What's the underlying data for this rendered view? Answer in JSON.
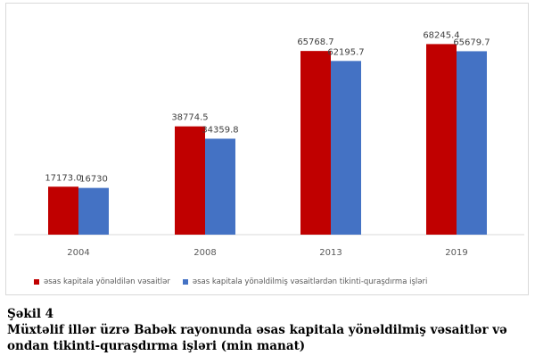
{
  "chart_data": {
    "type": "bar",
    "categories": [
      "2004",
      "2008",
      "2013",
      "2019"
    ],
    "series": [
      {
        "name": "əsas kapitala yönəldilən vəsaitlər",
        "values": [
          17173.0,
          38774.5,
          65768.7,
          68245.4
        ],
        "labels": [
          "17173.0",
          "38774.5",
          "65768.7",
          "68245.4"
        ],
        "color": "#c00000"
      },
      {
        "name": "əsas kapitala yönəldilmiş vəsaitlərdən tikinti-quraşdırma işləri",
        "values": [
          16730,
          34359.8,
          62195.7,
          65679.7
        ],
        "labels": [
          "16730",
          "34359.8",
          "62195.7",
          "65679.7"
        ],
        "color": "#4472c4"
      }
    ],
    "ylim": [
      0,
      77000
    ],
    "grid": false,
    "legend_position": "bottom-left"
  },
  "caption": {
    "number": "Şəkil 4",
    "line1": "Müxtəlif illər üzrə Babək rayonunda əsas kapitala yönəldilmiş vəsaitlər və",
    "line2": "ondan tikinti-quraşdırma işləri (min manat)"
  }
}
